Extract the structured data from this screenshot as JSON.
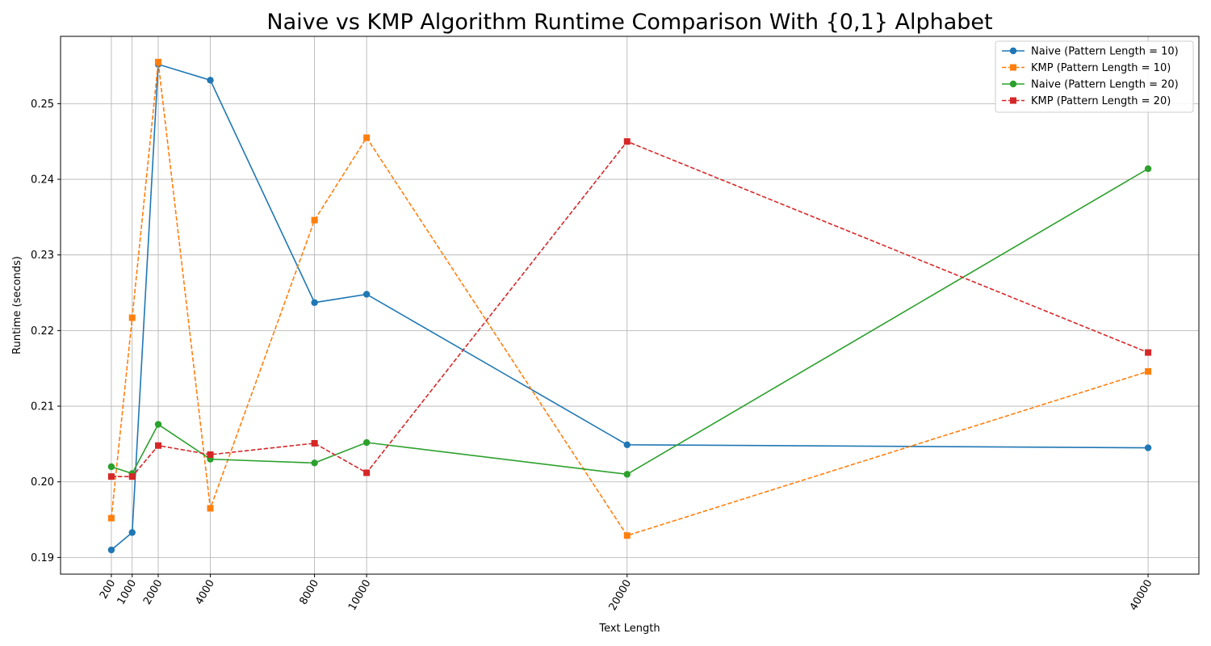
{
  "chart_data": {
    "type": "line",
    "title": "Naive vs KMP Algorithm Runtime Comparison With {0,1} Alphabet",
    "xlabel": "Text Length",
    "ylabel": "Runtime (seconds)",
    "x": [
      200,
      1000,
      2000,
      4000,
      8000,
      10000,
      20000,
      40000
    ],
    "x_tick_labels": [
      "200",
      "1000",
      "2000",
      "4000",
      "8000",
      "10000",
      "20000",
      "40000"
    ],
    "xlim": [
      -1750,
      41950
    ],
    "ylim": [
      0.1878,
      0.2589
    ],
    "y_ticks": [
      0.19,
      0.2,
      0.21,
      0.22,
      0.23,
      0.24,
      0.25
    ],
    "y_tick_labels": [
      "0.19",
      "0.20",
      "0.21",
      "0.22",
      "0.23",
      "0.24",
      "0.25"
    ],
    "grid": true,
    "legend_position": "top-right",
    "series": [
      {
        "name": "Naive (Pattern Length = 10)",
        "color": "#1f77b4",
        "linestyle": "solid",
        "marker": "circle",
        "values": [
          0.191,
          0.1933,
          0.2552,
          0.2531,
          0.2237,
          0.2248,
          0.2049,
          0.2045
        ]
      },
      {
        "name": "KMP (Pattern Length = 10)",
        "color": "#ff7f0e",
        "linestyle": "dashed",
        "marker": "square",
        "values": [
          0.1952,
          0.2217,
          0.2555,
          0.1965,
          0.2346,
          0.2455,
          0.1929,
          0.2146
        ]
      },
      {
        "name": "Naive (Pattern Length = 20)",
        "color": "#2ca02c",
        "linestyle": "solid",
        "marker": "circle",
        "values": [
          0.202,
          0.2011,
          0.2076,
          0.203,
          0.2025,
          0.2052,
          0.201,
          0.2414
        ]
      },
      {
        "name": "KMP (Pattern Length = 20)",
        "color": "#d62728",
        "linestyle": "dashed",
        "marker": "square",
        "values": [
          0.2007,
          0.2007,
          0.2048,
          0.2036,
          0.2051,
          0.2012,
          0.245,
          0.2171
        ]
      }
    ]
  }
}
